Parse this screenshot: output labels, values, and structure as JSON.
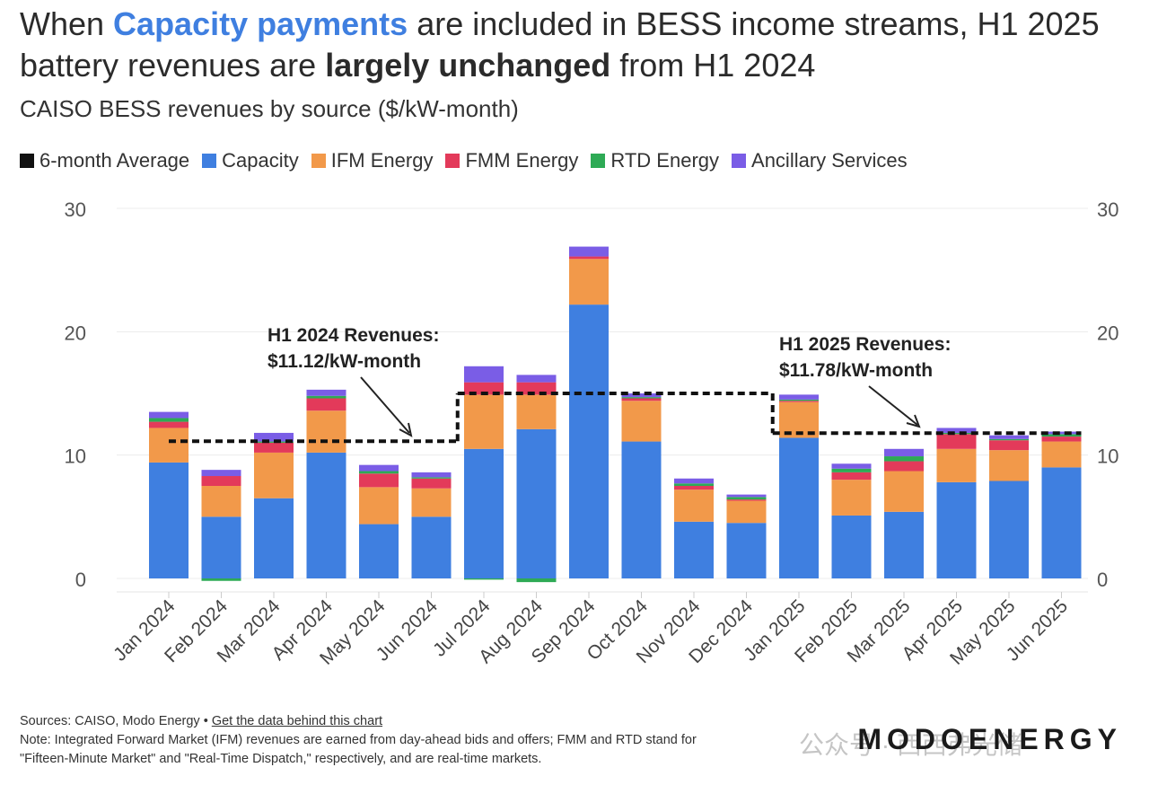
{
  "title": {
    "part1": "When ",
    "highlight": "Capacity payments",
    "part2": " are included in BESS income streams, H1 2025 battery revenues are ",
    "bold": "largely unchanged",
    "part3": " from H1 2024"
  },
  "subtitle": "CAISO BESS revenues by source ($/kW-month)",
  "legend": [
    {
      "label": "6-month Average",
      "color": "#111111"
    },
    {
      "label": "Capacity",
      "color": "#3f7fe0"
    },
    {
      "label": "IFM Energy",
      "color": "#f2994a"
    },
    {
      "label": "FMM Energy",
      "color": "#e33a5a"
    },
    {
      "label": "RTD Energy",
      "color": "#2eaa55"
    },
    {
      "label": "Ancillary Services",
      "color": "#7a5de6"
    }
  ],
  "annotations": {
    "h1_2024_line1": "H1 2024 Revenues:",
    "h1_2024_line2": "$11.12/kW-month",
    "h1_2025_line1": "H1 2025 Revenues:",
    "h1_2025_line2": "$11.78/kW-month"
  },
  "footer": {
    "sources": "Sources: CAISO, Modo Energy • ",
    "link": "Get the data behind this chart",
    "note1": "Note: Integrated Forward Market (IFM) revenues are earned from day-ahead bids and offers; FMM and RTD stand for",
    "note2": "\"Fifteen-Minute Market\" and \"Real-Time Dispatch,\" respectively, and are real-time markets."
  },
  "brand": "MODOENERGY",
  "watermark": "公众号 · 西西弗光储",
  "chart_data": {
    "type": "bar",
    "stacked": true,
    "ylim": [
      0,
      30
    ],
    "yticks": [
      0,
      10,
      20,
      30
    ],
    "grid": true,
    "categories": [
      "Jan 2024",
      "Feb 2024",
      "Mar 2024",
      "Apr 2024",
      "May 2024",
      "Jun 2024",
      "Jul 2024",
      "Aug 2024",
      "Sep 2024",
      "Oct 2024",
      "Nov 2024",
      "Dec 2024",
      "Jan 2025",
      "Feb 2025",
      "Mar 2025",
      "Apr 2025",
      "May 2025",
      "Jun 2025"
    ],
    "series": [
      {
        "name": "Capacity",
        "color": "#3f7fe0",
        "values": [
          9.4,
          5.0,
          6.5,
          10.2,
          4.4,
          5.0,
          10.5,
          12.1,
          22.2,
          11.1,
          4.6,
          4.5,
          11.4,
          5.1,
          5.4,
          7.8,
          7.9,
          9.0
        ]
      },
      {
        "name": "IFM Energy",
        "color": "#f2994a",
        "values": [
          2.8,
          2.5,
          3.7,
          3.4,
          3.0,
          2.3,
          4.4,
          2.8,
          3.7,
          3.3,
          2.6,
          1.8,
          2.9,
          2.9,
          3.3,
          2.7,
          2.5,
          2.1
        ]
      },
      {
        "name": "FMM Energy",
        "color": "#e33a5a",
        "values": [
          0.5,
          0.8,
          0.8,
          1.0,
          1.1,
          0.8,
          1.0,
          1.0,
          0.2,
          0.2,
          0.3,
          0.1,
          0.1,
          0.6,
          0.8,
          1.2,
          0.8,
          0.4
        ]
      },
      {
        "name": "RTD Energy",
        "color": "#2eaa55",
        "values": [
          0.3,
          -0.2,
          0.1,
          0.2,
          0.2,
          0.1,
          -0.1,
          -0.3,
          0.0,
          0.1,
          0.2,
          0.2,
          0.1,
          0.3,
          0.4,
          0.1,
          0.1,
          0.2
        ]
      },
      {
        "name": "Ancillary Services",
        "color": "#7a5de6",
        "values": [
          0.5,
          0.5,
          0.7,
          0.5,
          0.5,
          0.4,
          1.3,
          0.6,
          0.8,
          0.3,
          0.4,
          0.2,
          0.4,
          0.4,
          0.6,
          0.4,
          0.3,
          0.2
        ]
      }
    ],
    "six_month_average": [
      {
        "from": "Jan 2024",
        "to": "Jun 2024",
        "value": 11.12
      },
      {
        "from": "Jul 2024",
        "to": "Dec 2024",
        "value": 15.0
      },
      {
        "from": "Jan 2025",
        "to": "Jun 2025",
        "value": 11.78
      }
    ]
  }
}
